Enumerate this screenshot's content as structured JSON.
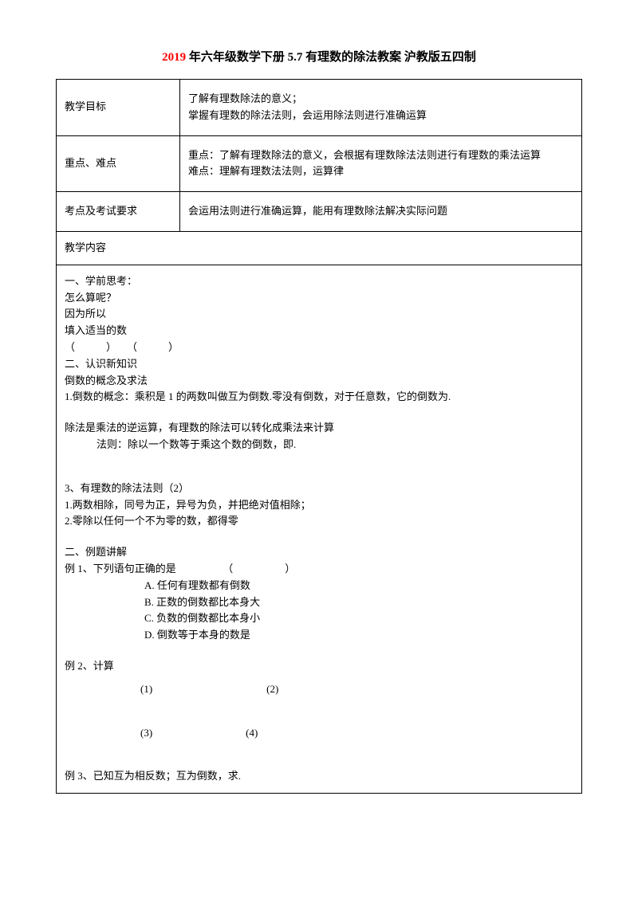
{
  "title": {
    "year": "2019",
    "rest": " 年六年级数学下册 5.7 有理数的除法教案 沪教版五四制"
  },
  "rows": {
    "goal": {
      "label": "教学目标",
      "line1": "了解有理数除法的意义；",
      "line2": "掌握有理数的除法法则，会运用除法则进行准确运算"
    },
    "keypoints": {
      "label": "重点、难点",
      "line1": "重点：了解有理数除法的意义，会根据有理数除法法则进行有理数的乘法运算",
      "line2": "难点：理解有理数法法则，运算律"
    },
    "exam": {
      "label": "考点及考试要求",
      "content": "会运用法则进行准确运算，能用有理数除法解决实际问题"
    },
    "teachcontent": "教学内容"
  },
  "body": {
    "s1_title": "一、学前思考：",
    "s1_l1": "怎么算呢？",
    "s1_l2": "因为所以",
    "s1_l3": "填入适当的数",
    "s1_l4": "（　　　）　　（　　　）",
    "s2_title": "二、认识新知识",
    "s2_l1": "倒数的概念及求法",
    "s2_l2": "1.倒数的概念：乘积是 1 的两数叫做互为倒数.零没有倒数，对于任意数，它的倒数为.",
    "s3_l1": "除法是乘法的逆运算，有理数的除法可以转化成乘法来计算",
    "s3_l2": "法则：除以一个数等于乘这个数的倒数，即.",
    "s4_title": "3、有理数的除法法则（2）",
    "s4_l1": "1.两数相除，同号为正，异号为负，并把绝对值相除；",
    "s4_l2": "2.零除以任何一个不为零的数，都得零",
    "s5_title": "二、例题讲解",
    "s5_ex1": "例 1、下列语句正确的是　　　　　（　　　　　）",
    "s5_optA": "A. 任何有理数都有倒数",
    "s5_optB": "B. 正数的倒数都比本身大",
    "s5_optC": "C. 负数的倒数都比本身小",
    "s5_optD": "D. 倒数等于本身的数是",
    "s5_ex2": "例 2、计算",
    "s5_ex2_12": "(1)　　　　　　　　　　　(2)",
    "s5_ex2_34": "(3)　　　　　　　　　(4)",
    "s5_ex3": "例 3、已知互为相反数；互为倒数，求."
  },
  "colors": {
    "year_color": "#ff0000",
    "text_color": "#000000",
    "border_color": "#000000",
    "background": "#ffffff"
  },
  "fonts": {
    "title_size": 15,
    "body_size": 13,
    "family": "SimSun"
  }
}
